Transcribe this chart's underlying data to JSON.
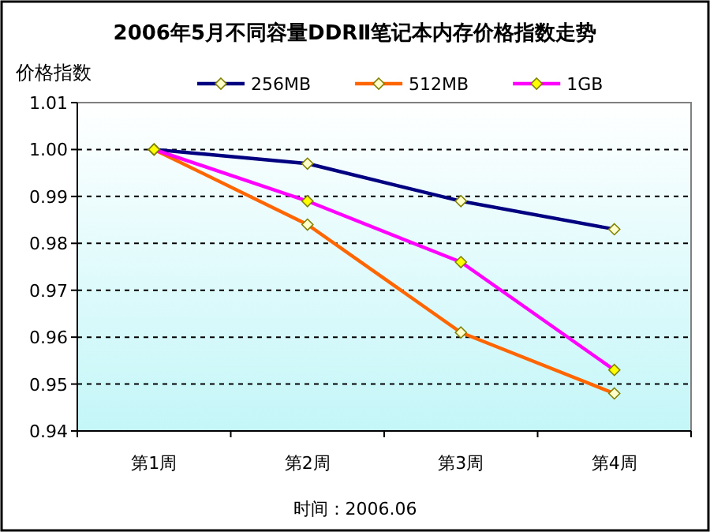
{
  "chart_data": {
    "type": "line",
    "title": "2006年5月不同容量DDRⅡ笔记本内存价格指数走势",
    "ylabel": "价格指数",
    "categories": [
      "第1周",
      "第2周",
      "第3周",
      "第4周"
    ],
    "series": [
      {
        "name": "256MB",
        "color": "#000080",
        "values": [
          1.0,
          0.997,
          0.989,
          0.983
        ]
      },
      {
        "name": "512MB",
        "color": "#ff6600",
        "values": [
          1.0,
          0.984,
          0.961,
          0.948
        ]
      },
      {
        "name": "1GB",
        "color": "#ff00ff",
        "values": [
          1.0,
          0.989,
          0.976,
          0.953
        ]
      }
    ],
    "ylim": [
      0.94,
      1.01
    ],
    "yticks": [
      {
        "value": 0.94,
        "label": "0.94"
      },
      {
        "value": 0.95,
        "label": "0.95"
      },
      {
        "value": 0.96,
        "label": "0.96"
      },
      {
        "value": 0.97,
        "label": "0.97"
      },
      {
        "value": 0.98,
        "label": "0.98"
      },
      {
        "value": 0.99,
        "label": "0.99"
      },
      {
        "value": 1.0,
        "label": "1.00"
      },
      {
        "value": 1.01,
        "label": "1.01"
      }
    ],
    "grid": "y",
    "legend": "top",
    "marker": "diamond",
    "annotations": [
      "时间：2006.06"
    ]
  }
}
